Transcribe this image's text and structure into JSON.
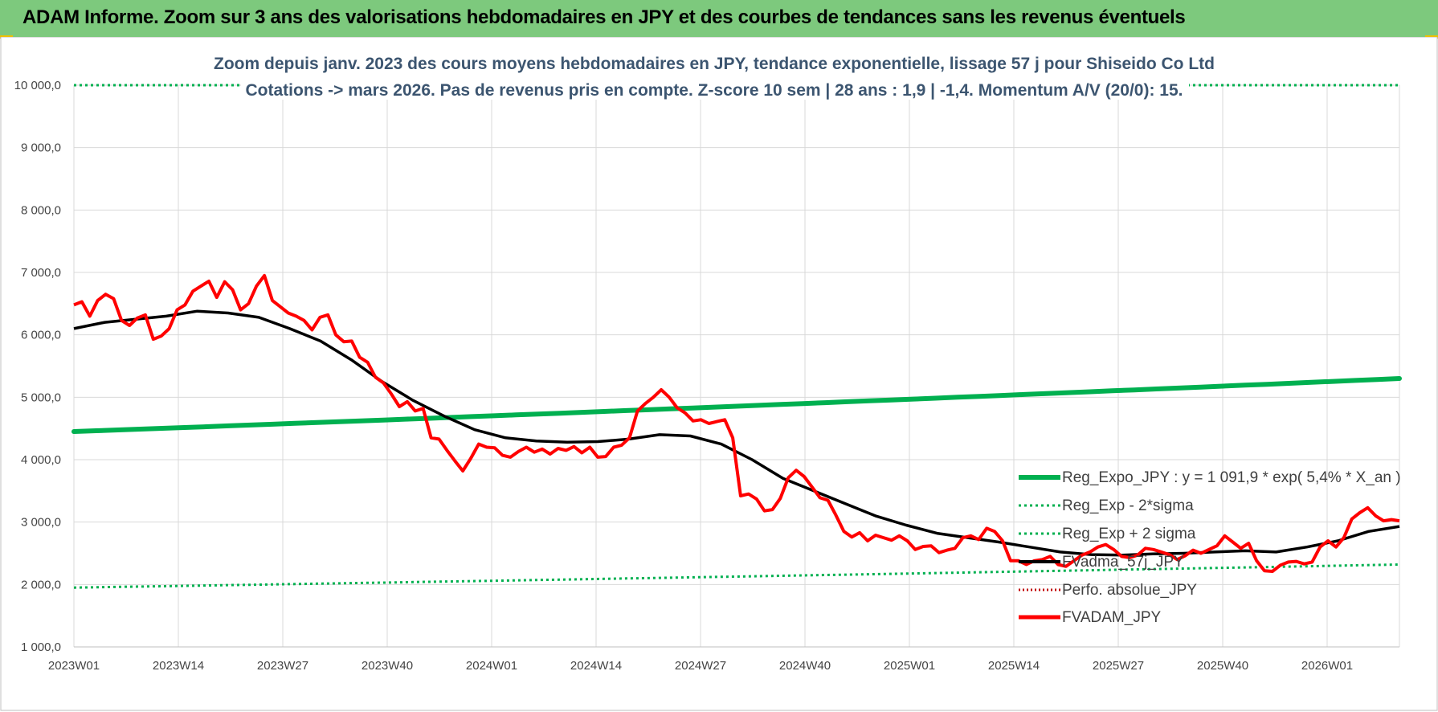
{
  "header": {
    "title": "ADAM Informe. Zoom sur 3 ans des valorisations hebdomadaires en JPY et des courbes de tendances sans les revenus éventuels"
  },
  "chart_data": {
    "type": "line",
    "title_lines": [
      "Zoom depuis janv. 2023 des cours moyens hebdomadaires en JPY, tendance exponentielle, lissage 57 j pour Shiseido Co Ltd",
      "Cotations -> mars 2026. Pas de revenus pris en compte. Z-score 10 sem | 28 ans : 1,9 | -1,4. Momentum A/V (20/0): 15."
    ],
    "ylim": [
      1000,
      10000
    ],
    "yticks": [
      1000,
      2000,
      3000,
      4000,
      5000,
      6000,
      7000,
      8000,
      9000,
      10000
    ],
    "ytick_labels": [
      "1 000,0",
      "2 000,0",
      "3 000,0",
      "4 000,0",
      "5 000,0",
      "6 000,0",
      "7 000,0",
      "8 000,0",
      "9 000,0",
      "10 000,0"
    ],
    "xrange": [
      0,
      165
    ],
    "xtick_labels": [
      "2023W01",
      "2023W14",
      "2023W27",
      "2023W40",
      "2024W01",
      "2024W14",
      "2024W27",
      "2024W40",
      "2025W01",
      "2025W14",
      "2025W27",
      "2025W40",
      "2026W01"
    ],
    "grid": true,
    "legend_position": "bottom-right",
    "colors": {
      "reg_expo": "#00b050",
      "bands": "#00b050",
      "smooth": "#000000",
      "perf": "#c00000",
      "fvadam": "#ff0000",
      "banner": "#7dc97d"
    },
    "series": [
      {
        "name": "Reg_Expo_JPY : y = 1 091,9 * exp( 5,4% *  X_an )",
        "style": "solid-thick",
        "color": "#00b050",
        "values": [
          4450,
          4790,
          5300
        ]
      },
      {
        "name": "Reg_Exp - 2*sigma",
        "style": "dotted",
        "color": "#00b050",
        "values": [
          1950,
          2100,
          2320
        ]
      },
      {
        "name": "Reg_Exp + 2 sigma",
        "style": "dotted",
        "color": "#00b050",
        "values": [
          10000,
          10000
        ]
      },
      {
        "name": "FVadma_57j_JPY",
        "style": "solid",
        "color": "#000000",
        "values": [
          6100,
          6200,
          6250,
          6300,
          6380,
          6350,
          6280,
          6100,
          5900,
          5600,
          5250,
          4950,
          4700,
          4480,
          4350,
          4300,
          4280,
          4290,
          4330,
          4400,
          4380,
          4250,
          4000,
          3700,
          3500,
          3300,
          3100,
          2950,
          2820,
          2750,
          2680,
          2600,
          2520,
          2480,
          2470,
          2490,
          2500,
          2520,
          2540,
          2520,
          2600,
          2700,
          2850,
          2930
        ]
      },
      {
        "name": "Perfo. absolue_JPY",
        "style": "dotted",
        "color": "#c00000",
        "values": []
      },
      {
        "name": "FVADAM_JPY",
        "style": "solid-thick",
        "color": "#ff0000",
        "values": [
          6480,
          6530,
          6300,
          6550,
          6650,
          6580,
          6230,
          6150,
          6270,
          6320,
          5930,
          5980,
          6100,
          6400,
          6480,
          6700,
          6780,
          6860,
          6600,
          6850,
          6720,
          6400,
          6500,
          6780,
          6950,
          6550,
          6450,
          6350,
          6300,
          6230,
          6080,
          6280,
          6320,
          6000,
          5890,
          5900,
          5640,
          5560,
          5320,
          5230,
          5050,
          4850,
          4930,
          4780,
          4820,
          4350,
          4330,
          4150,
          3980,
          3820,
          4020,
          4250,
          4200,
          4190,
          4070,
          4040,
          4130,
          4200,
          4120,
          4170,
          4090,
          4180,
          4150,
          4210,
          4110,
          4200,
          4040,
          4050,
          4200,
          4230,
          4350,
          4780,
          4900,
          5000,
          5120,
          5000,
          4830,
          4750,
          4620,
          4640,
          4580,
          4610,
          4640,
          4350,
          3420,
          3450,
          3370,
          3180,
          3200,
          3380,
          3710,
          3830,
          3730,
          3560,
          3390,
          3350,
          3110,
          2850,
          2760,
          2830,
          2700,
          2790,
          2750,
          2710,
          2780,
          2700,
          2560,
          2610,
          2620,
          2510,
          2550,
          2580,
          2750,
          2780,
          2720,
          2900,
          2850,
          2700,
          2380,
          2380,
          2320,
          2380,
          2400,
          2450,
          2320,
          2290,
          2380,
          2470,
          2520,
          2600,
          2640,
          2560,
          2450,
          2430,
          2470,
          2580,
          2560,
          2520,
          2480,
          2400,
          2460,
          2550,
          2500,
          2560,
          2620,
          2780,
          2680,
          2580,
          2660,
          2380,
          2220,
          2210,
          2310,
          2360,
          2370,
          2330,
          2360,
          2600,
          2700,
          2600,
          2750,
          3050,
          3150,
          3230,
          3100,
          3020,
          3040,
          3020
        ]
      }
    ]
  }
}
